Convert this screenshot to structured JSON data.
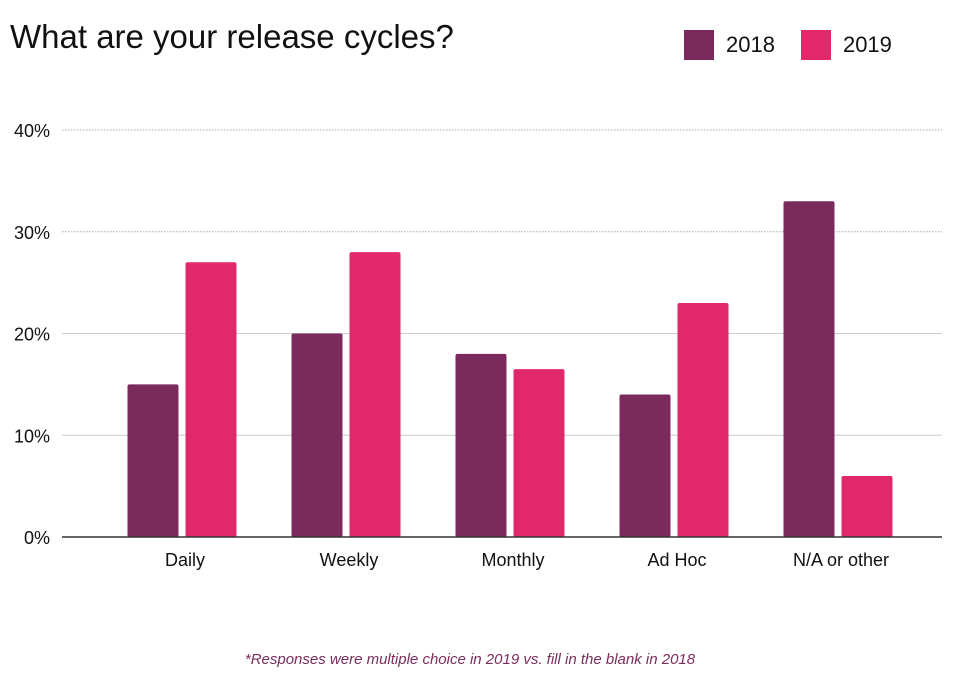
{
  "chart_data": {
    "type": "bar",
    "title": "What are your release cycles?",
    "categories": [
      "Daily",
      "Weekly",
      "Monthly",
      "Ad Hoc",
      "N/A or other"
    ],
    "series": [
      {
        "name": "2018",
        "values": [
          15,
          20,
          18,
          14,
          33
        ],
        "color": "#7b2a5e"
      },
      {
        "name": "2019",
        "values": [
          27,
          28,
          16.5,
          23,
          6
        ],
        "color": "#e3276b"
      }
    ],
    "yticks": [
      "0%",
      "10%",
      "20%",
      "30%",
      "40%"
    ],
    "ylim": [
      0,
      40
    ],
    "grid": true,
    "legend_position": "top-right",
    "footnote": "*Responses were multiple choice in 2019 vs. fill in the blank in 2018"
  }
}
